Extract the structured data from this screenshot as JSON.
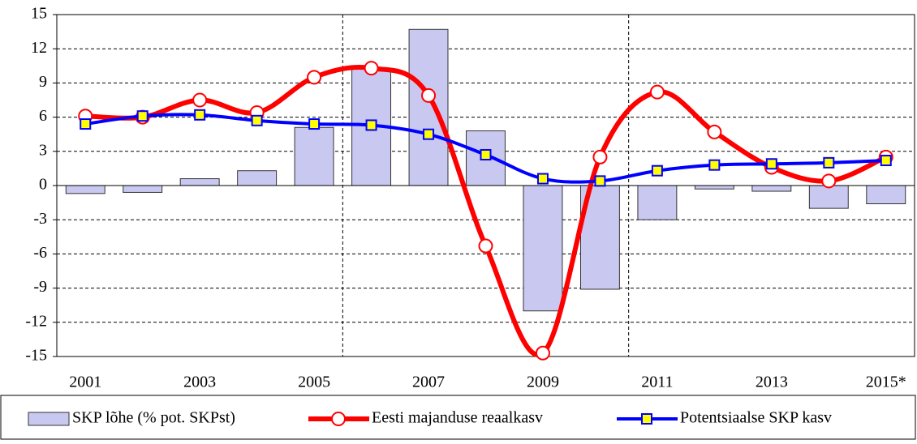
{
  "chart_data": {
    "type": "bar",
    "categories": [
      "2001",
      null,
      "2003",
      null,
      "2005",
      null,
      "2007",
      null,
      "2009",
      null,
      "2011",
      null,
      "2013",
      null,
      "2015*"
    ],
    "ylim": [
      -15,
      15
    ],
    "yticks": [
      -15,
      -12,
      -9,
      -6,
      -3,
      0,
      3,
      6,
      9,
      12,
      15
    ],
    "grid": true,
    "legend": "bottom",
    "series": [
      {
        "name": "SKP lõhe (% pot. SKPst)",
        "type": "bar",
        "color": "#c8c8f0",
        "values": [
          -0.7,
          -0.6,
          0.6,
          1.3,
          5.1,
          10.3,
          13.7,
          4.8,
          -11.0,
          -9.1,
          -3.0,
          -0.3,
          -0.5,
          -2.0,
          -1.6
        ]
      },
      {
        "name": "Eesti majanduse reaalkasv",
        "type": "line",
        "color": "#ff0000",
        "marker": "circle",
        "values": [
          6.1,
          6.0,
          7.5,
          6.4,
          9.5,
          10.3,
          7.9,
          -5.3,
          -14.7,
          2.5,
          8.2,
          4.7,
          1.6,
          0.4,
          2.5
        ]
      },
      {
        "name": "Potentsiaalse SKP kasv",
        "type": "line",
        "color": "#0000ff",
        "marker": "square",
        "values": [
          5.4,
          6.1,
          6.2,
          5.7,
          5.4,
          5.3,
          4.5,
          2.7,
          0.6,
          0.4,
          1.3,
          1.8,
          1.9,
          2.0,
          2.2
        ]
      }
    ]
  }
}
